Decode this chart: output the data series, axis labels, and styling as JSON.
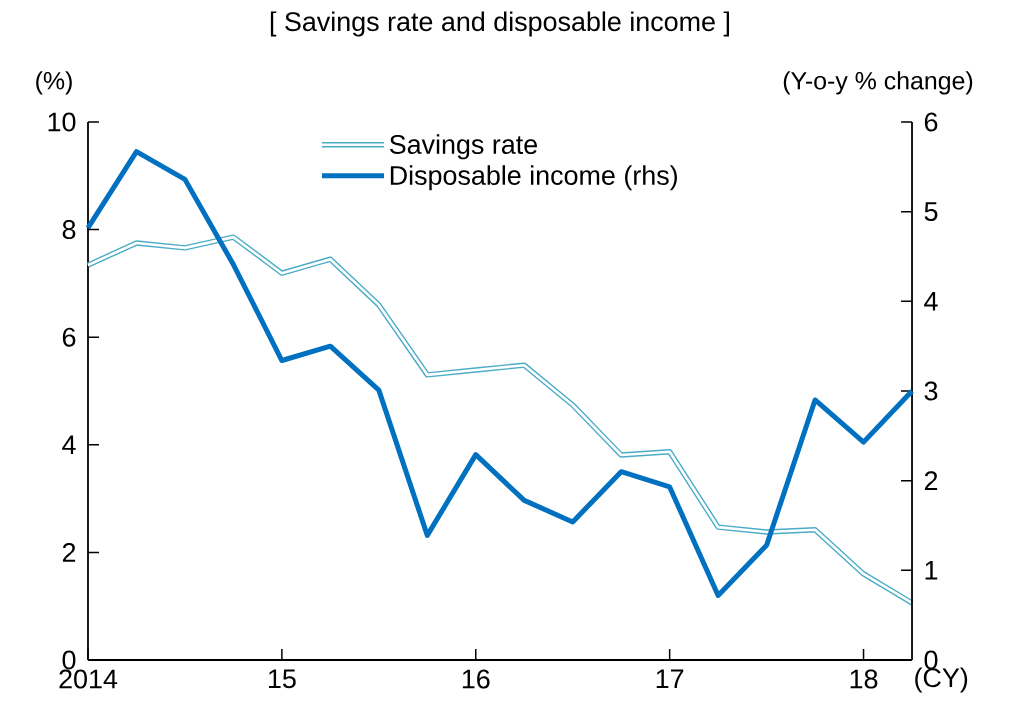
{
  "chart_data": {
    "type": "line",
    "title": "[ Savings rate and disposable income ]",
    "xlabel": "(CY)",
    "ylabel": "(%)",
    "y2label": "(Y-o-y % change)",
    "x": [
      2014,
      2014.25,
      2014.5,
      2014.75,
      2015,
      2015.25,
      2015.5,
      2015.75,
      2016,
      2016.25,
      2016.5,
      2016.75,
      2017,
      2017.25,
      2017.5,
      2017.75,
      2018,
      2018.25
    ],
    "xlim": [
      2014,
      2018.25
    ],
    "xticks": [
      {
        "value": 2014,
        "label": "2014"
      },
      {
        "value": 2015,
        "label": "15"
      },
      {
        "value": 2016,
        "label": "16"
      },
      {
        "value": 2017,
        "label": "17"
      },
      {
        "value": 2018,
        "label": "18"
      }
    ],
    "ylim": [
      0,
      10
    ],
    "yticks": [
      0,
      2,
      4,
      6,
      8,
      10
    ],
    "y2lim": [
      0,
      6
    ],
    "y2ticks": [
      0,
      1,
      2,
      3,
      4,
      5,
      6
    ],
    "legend": "top",
    "grid": false,
    "series": [
      {
        "name": "Savings rate",
        "color": "#4bacc6",
        "axis": "y",
        "values": [
          7.34,
          7.75,
          7.66,
          7.86,
          7.19,
          7.45,
          6.6,
          5.3,
          5.39,
          5.48,
          4.74,
          3.81,
          3.87,
          2.47,
          2.38,
          2.42,
          1.6,
          1.06
        ]
      },
      {
        "name": "Disposable income (rhs)",
        "color": "#0070c0",
        "axis": "y2",
        "values": [
          4.82,
          5.67,
          5.36,
          4.41,
          3.34,
          3.5,
          3.01,
          1.39,
          2.29,
          1.78,
          1.54,
          2.1,
          1.93,
          0.72,
          1.28,
          2.9,
          2.43,
          3.0
        ]
      }
    ]
  }
}
